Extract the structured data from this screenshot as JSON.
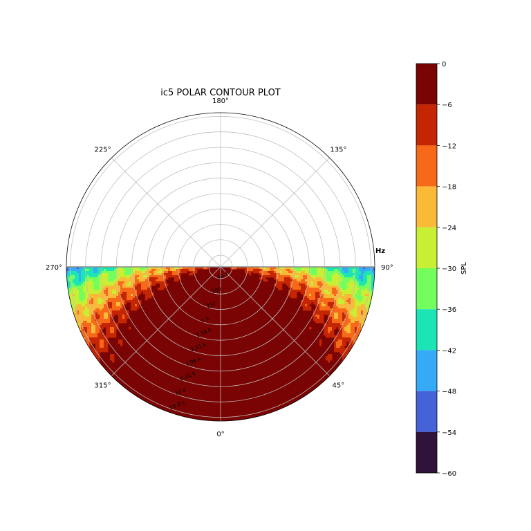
{
  "chart_data": {
    "type": "polar-contour",
    "title": "ic5 POLAR CONTOUR PLOT",
    "radial_unit_label": "Hz",
    "angle_direction": "counterclockwise",
    "angle_zero_position": "bottom",
    "angular_ticks": [
      {
        "deg": 0,
        "label": "0°"
      },
      {
        "deg": 45,
        "label": "45°"
      },
      {
        "deg": 90,
        "label": "90°"
      },
      {
        "deg": 135,
        "label": "135°"
      },
      {
        "deg": 180,
        "label": "180°"
      },
      {
        "deg": 225,
        "label": "225°"
      },
      {
        "deg": 270,
        "label": "270°"
      },
      {
        "deg": 315,
        "label": "315°"
      }
    ],
    "radial_ticks": [
      "42.7",
      "100",
      "237",
      "1 k",
      "1.58 k",
      "2.51 k",
      "3.98 k",
      "6.31 k",
      "10 k",
      "15.8 k"
    ],
    "data_angular_range_deg": [
      -90,
      90
    ],
    "colorbar": {
      "label": "SPL",
      "min": -60,
      "max": 0,
      "ticks": [
        "0",
        "−6",
        "−12",
        "−18",
        "−24",
        "−30",
        "−36",
        "−42",
        "−48",
        "−54",
        "−60"
      ],
      "levels": [
        {
          "range": [
            -6,
            0
          ],
          "color": "#7a0403"
        },
        {
          "range": [
            -12,
            -6
          ],
          "color": "#c42503"
        },
        {
          "range": [
            -18,
            -12
          ],
          "color": "#f56918"
        },
        {
          "range": [
            -24,
            -18
          ],
          "color": "#fbb938"
        },
        {
          "range": [
            -30,
            -24
          ],
          "color": "#c9ef34"
        },
        {
          "range": [
            -36,
            -30
          ],
          "color": "#74fe5d"
        },
        {
          "range": [
            -42,
            -36
          ],
          "color": "#1be5b5"
        },
        {
          "range": [
            -48,
            -42
          ],
          "color": "#35abf8"
        },
        {
          "range": [
            -54,
            -48
          ],
          "color": "#4662d8"
        },
        {
          "range": [
            -60,
            -54
          ],
          "color": "#30123b"
        }
      ]
    },
    "grid": true
  }
}
